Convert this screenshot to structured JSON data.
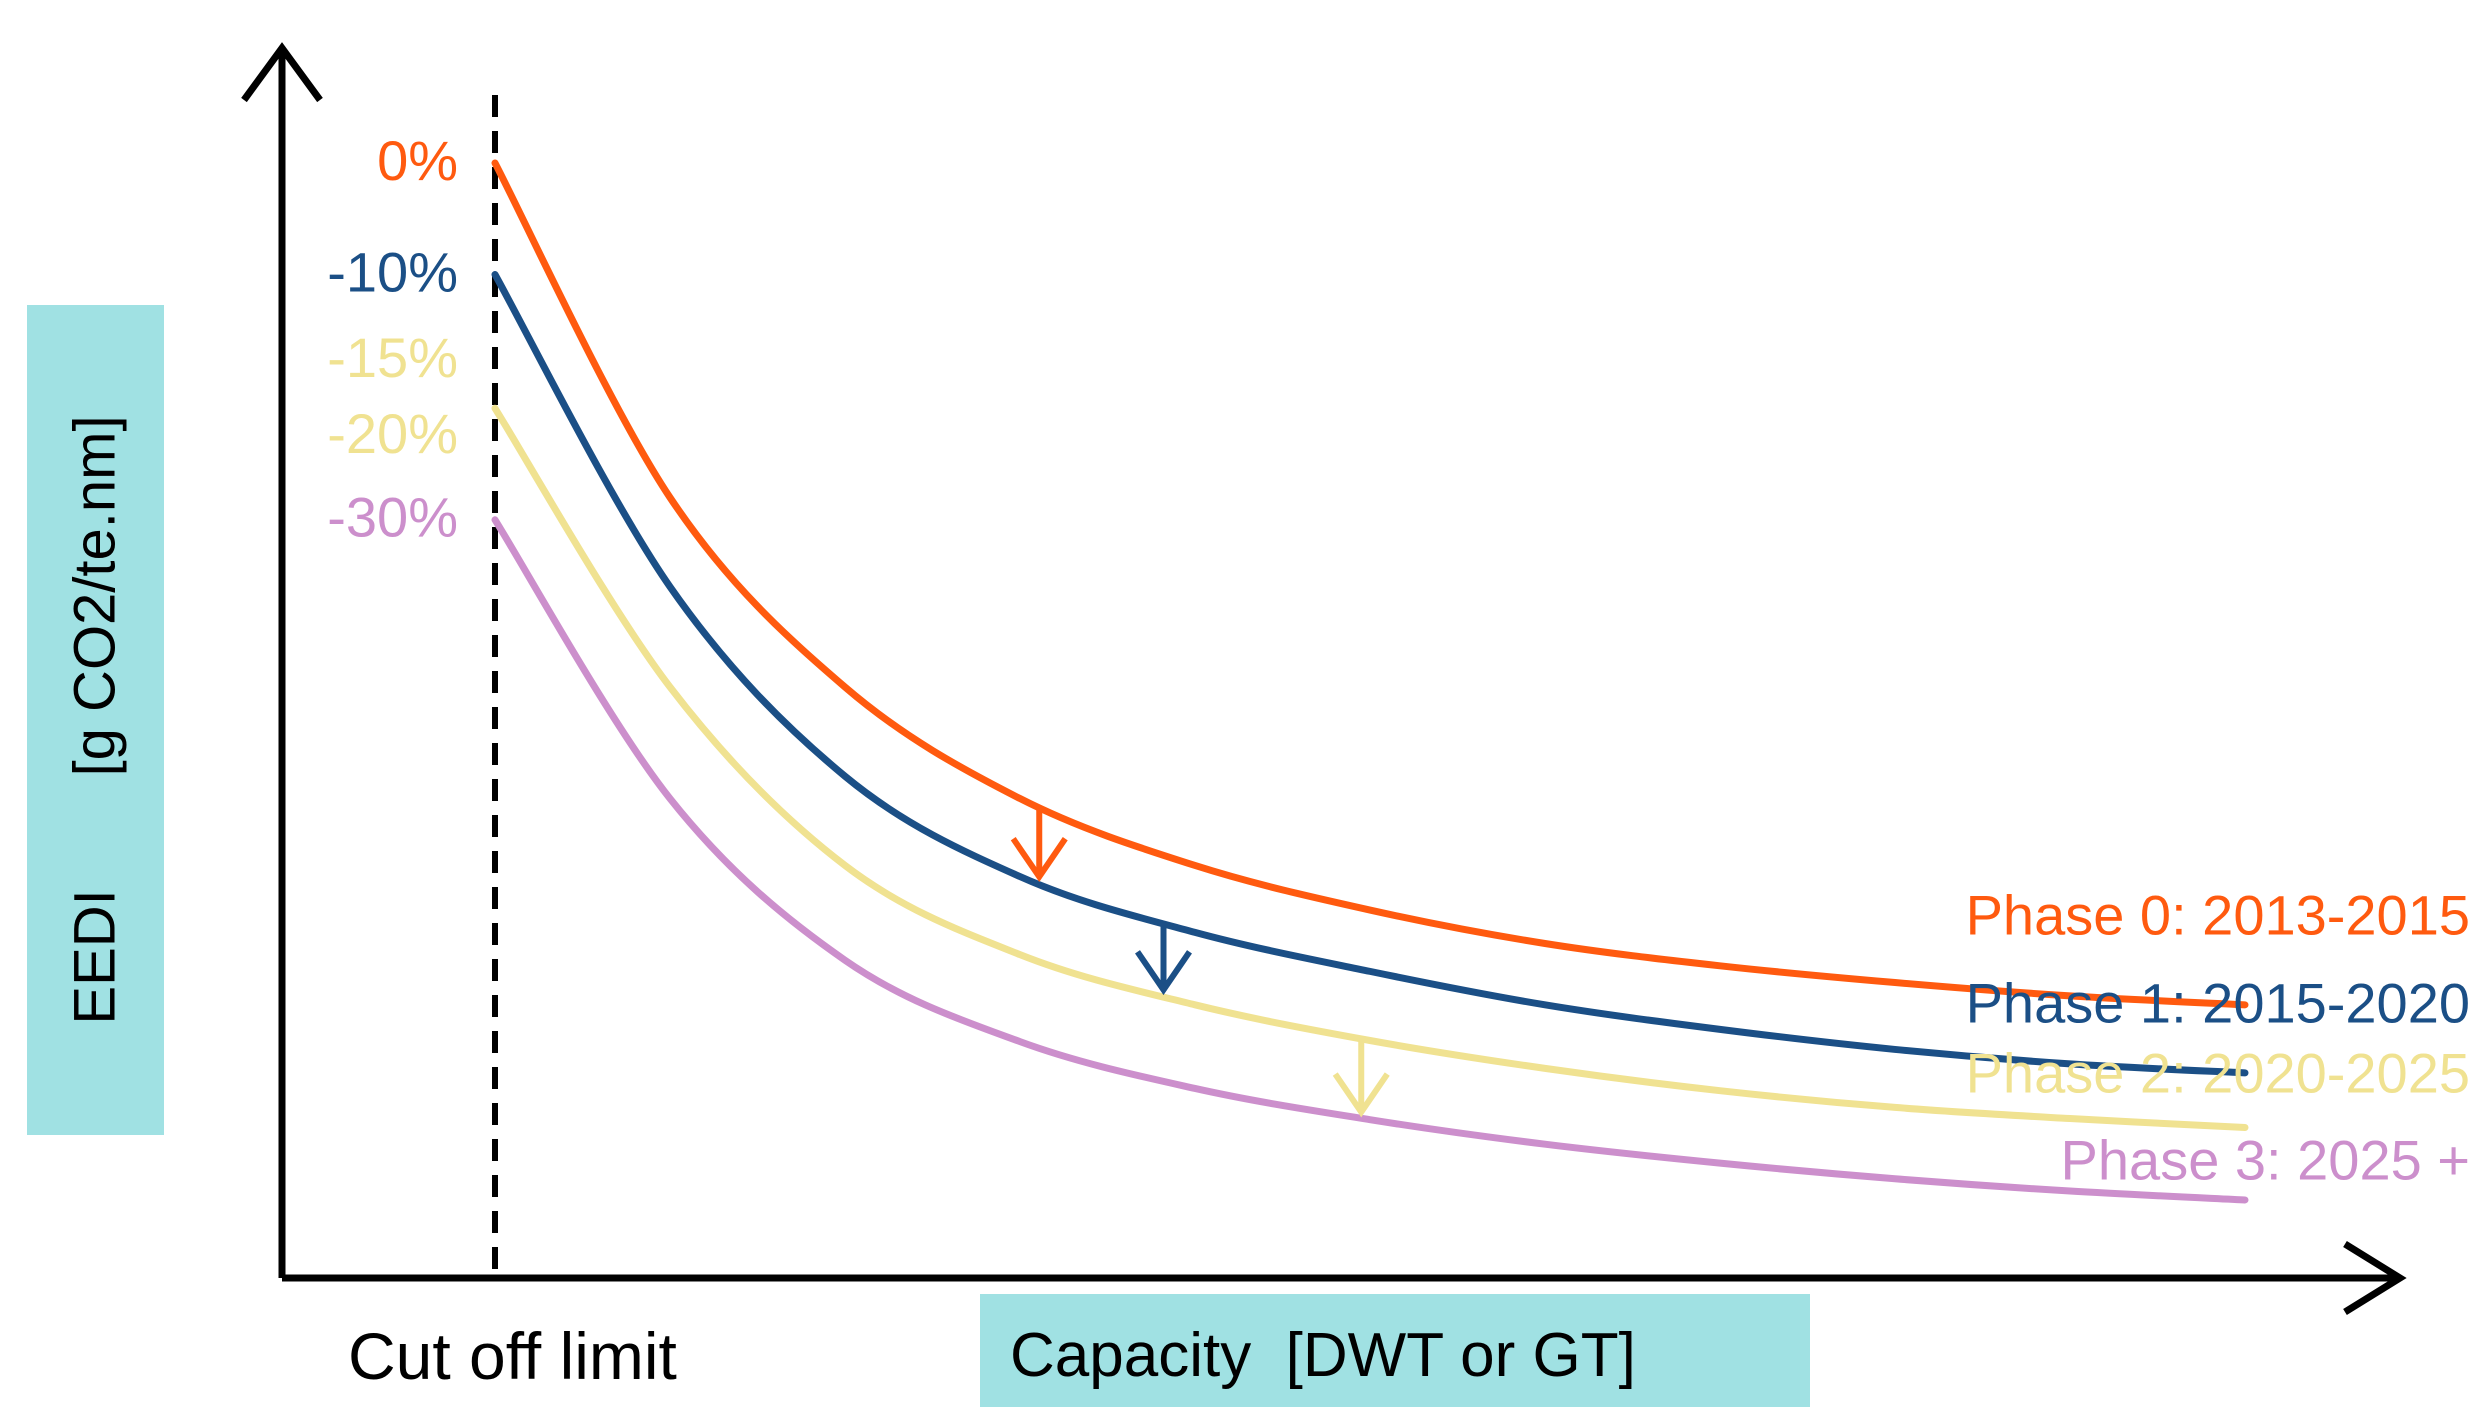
{
  "chart_data": {
    "type": "line",
    "title": "",
    "xlabel": "Capacity  [DWT or GT]",
    "ylabel": "EEDI       [g CO2/te.nm]",
    "x_annotation": "Cut off limit",
    "x_range": [
      0,
      100
    ],
    "y_range": [
      0,
      100
    ],
    "x": [
      0,
      10,
      20,
      30,
      40,
      50,
      60,
      70,
      80,
      90,
      100
    ],
    "series": [
      {
        "name": "Phase 0: 2013-2015",
        "start_label": "0%",
        "color": "#ff5a0f",
        "values": [
          100,
          70,
          53,
          43,
          37,
          33,
          30,
          28,
          26.5,
          25.3,
          24.5
        ]
      },
      {
        "name": "Phase 1: 2015-2020",
        "start_label": "-10%",
        "color": "#1b4f86",
        "values": [
          90,
          62,
          45,
          36,
          31,
          27.5,
          24.5,
          22.3,
          20.5,
          19.2,
          18.4
        ]
      },
      {
        "name": "Phase 2: 2020-2025",
        "start_label": "-15%",
        "color": "#f0e291",
        "values": [
          78,
          53,
          37,
          29,
          24.5,
          21.3,
          18.8,
          16.8,
          15.3,
          14.3,
          13.5
        ]
      },
      {
        "name": "Phase 3: 2025 +",
        "start_label": "-30%",
        "color": "#cc8fcc",
        "values": [
          68,
          43,
          28.5,
          21.2,
          17,
          14.2,
          12,
          10.3,
          8.9,
          7.8,
          7
        ]
      }
    ],
    "extra_labels": [
      "-20%"
    ],
    "extra_label_color": "#f0e291",
    "arrows": [
      {
        "from_series": 0,
        "to_series": 1,
        "x": 31.1
      },
      {
        "from_series": 1,
        "to_series": 2,
        "x": 38.2
      },
      {
        "from_series": 2,
        "to_series": 3,
        "x": 49.5
      }
    ],
    "grid": false,
    "legend": "inline-right"
  }
}
